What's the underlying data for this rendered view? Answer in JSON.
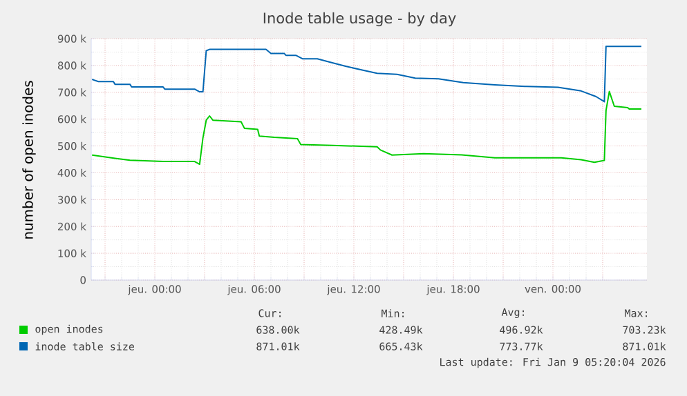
{
  "chart_data": {
    "type": "line",
    "title": "Inode table usage - by day",
    "ylabel": "number of open inodes",
    "xlim": [
      "2026-01-07T20:10",
      "2026-01-09T05:40"
    ],
    "xticks": [
      {
        "value": "2026-01-07T21:00",
        "label": null
      },
      {
        "value": "2026-01-08T00:00",
        "label": "jeu. 00:00"
      },
      {
        "value": "2026-01-08T03:00",
        "label": null
      },
      {
        "value": "2026-01-08T06:00",
        "label": "jeu. 06:00"
      },
      {
        "value": "2026-01-08T09:00",
        "label": null
      },
      {
        "value": "2026-01-08T12:00",
        "label": "jeu. 12:00"
      },
      {
        "value": "2026-01-08T15:00",
        "label": null
      },
      {
        "value": "2026-01-08T18:00",
        "label": "jeu. 18:00"
      },
      {
        "value": "2026-01-08T21:00",
        "label": null
      },
      {
        "value": "2026-01-09T00:00",
        "label": "ven. 00:00"
      },
      {
        "value": "2026-01-09T03:00",
        "label": null
      }
    ],
    "ylim": [
      0,
      900000
    ],
    "yticks": [
      0,
      {
        "value": 100000,
        "label": "100 k"
      },
      {
        "value": 200000,
        "label": "200 k"
      },
      {
        "value": 300000,
        "label": "300 k"
      },
      {
        "value": 400000,
        "label": "400 k"
      },
      {
        "value": 500000,
        "label": "500 k"
      },
      {
        "value": 600000,
        "label": "600 k"
      },
      {
        "value": 700000,
        "label": "700 k"
      },
      {
        "value": 800000,
        "label": "800 k"
      },
      {
        "value": 900000,
        "label": "900 k"
      }
    ],
    "grid": true,
    "legend": "bottom",
    "marker": "none",
    "line_style": "solid",
    "series": [
      {
        "name": "open inodes",
        "color": "#00cc00",
        "x": [
          "2026-01-07T20:13",
          "2026-01-07T21:36",
          "2026-01-07T22:30",
          "2026-01-08T00:30",
          "2026-01-08T02:24",
          "2026-01-08T02:42",
          "2026-01-08T02:54",
          "2026-01-08T03:06",
          "2026-01-08T03:18",
          "2026-01-08T03:30",
          "2026-01-08T05:12",
          "2026-01-08T05:24",
          "2026-01-08T06:12",
          "2026-01-08T06:18",
          "2026-01-08T07:12",
          "2026-01-08T08:36",
          "2026-01-08T08:48",
          "2026-01-08T10:42",
          "2026-01-08T13:24",
          "2026-01-08T13:36",
          "2026-01-08T14:18",
          "2026-01-08T16:12",
          "2026-01-08T18:30",
          "2026-01-08T20:30",
          "2026-01-09T00:30",
          "2026-01-09T01:42",
          "2026-01-09T02:30",
          "2026-01-09T03:06",
          "2026-01-09T03:12",
          "2026-01-09T03:24",
          "2026-01-09T03:42",
          "2026-01-09T04:30",
          "2026-01-09T04:36",
          "2026-01-09T05:20"
        ],
        "values": [
          466000,
          454000,
          447000,
          442000,
          442000,
          432000,
          530000,
          596000,
          612000,
          596000,
          590000,
          566000,
          562000,
          537000,
          532000,
          527000,
          505000,
          502000,
          497000,
          485000,
          466000,
          471000,
          467000,
          456000,
          456000,
          449000,
          439000,
          446000,
          632000,
          703000,
          648000,
          643000,
          638000,
          638000
        ]
      },
      {
        "name": "inode table size",
        "color": "#0066b3",
        "x": [
          "2026-01-07T20:13",
          "2026-01-07T20:36",
          "2026-01-07T21:30",
          "2026-01-07T21:36",
          "2026-01-07T22:30",
          "2026-01-07T22:36",
          "2026-01-08T00:30",
          "2026-01-08T00:36",
          "2026-01-08T02:24",
          "2026-01-08T02:42",
          "2026-01-08T02:54",
          "2026-01-08T03:06",
          "2026-01-08T03:18",
          "2026-01-08T06:42",
          "2026-01-08T07:00",
          "2026-01-08T07:48",
          "2026-01-08T07:54",
          "2026-01-08T08:30",
          "2026-01-08T08:54",
          "2026-01-08T09:48",
          "2026-01-08T10:42",
          "2026-01-08T11:30",
          "2026-01-08T12:30",
          "2026-01-08T13:24",
          "2026-01-08T14:36",
          "2026-01-08T15:42",
          "2026-01-08T17:06",
          "2026-01-08T18:36",
          "2026-01-08T20:30",
          "2026-01-08T22:18",
          "2026-01-09T00:18",
          "2026-01-09T01:42",
          "2026-01-09T02:36",
          "2026-01-09T03:06",
          "2026-01-09T03:12",
          "2026-01-09T05:20"
        ],
        "values": [
          748000,
          740000,
          740000,
          730000,
          730000,
          720000,
          720000,
          712000,
          712000,
          702000,
          702000,
          855000,
          860000,
          860000,
          845000,
          845000,
          838000,
          838000,
          825000,
          825000,
          810000,
          797000,
          783000,
          771000,
          767000,
          753000,
          750000,
          736000,
          728000,
          722000,
          719000,
          705000,
          684000,
          665000,
          871000,
          871000
        ]
      }
    ],
    "annotations": [
      "Cur:",
      "Min:",
      "Avg:",
      "Max:",
      "638.00k",
      "428.49k",
      "496.92k",
      "703.23k",
      "871.01k",
      "665.43k",
      "773.77k",
      "871.01k",
      "Last update: Fri Jan  9 05:20:04 2026"
    ]
  }
}
